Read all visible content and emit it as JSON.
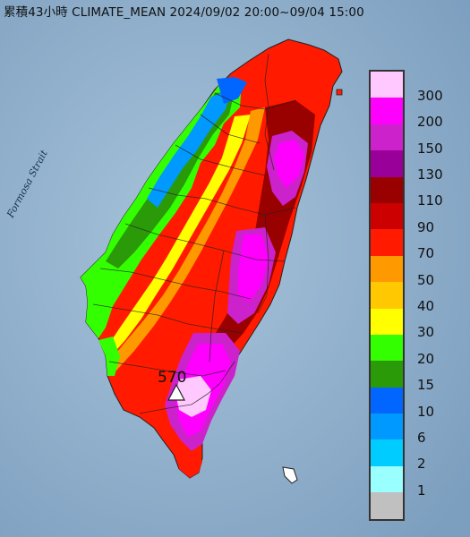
{
  "title": "累積43小時 CLIMATE_MEAN 2024/09/02 20:00~09/04 15:00",
  "strait_label": "Formosa Strait",
  "max_marker": {
    "value": "570",
    "icon": "triangle-station-marker-icon"
  },
  "legend": {
    "unit_note": "",
    "items": [
      {
        "label": "300",
        "color": "#ffc8ff"
      },
      {
        "label": "200",
        "color": "#ff00ff"
      },
      {
        "label": "150",
        "color": "#cc22cc"
      },
      {
        "label": "130",
        "color": "#990099"
      },
      {
        "label": "110",
        "color": "#990000"
      },
      {
        "label": "90",
        "color": "#cc0000"
      },
      {
        "label": "70",
        "color": "#ff1a00"
      },
      {
        "label": "50",
        "color": "#ff9900"
      },
      {
        "label": "40",
        "color": "#ffc800"
      },
      {
        "label": "30",
        "color": "#ffff00"
      },
      {
        "label": "20",
        "color": "#33ff00"
      },
      {
        "label": "15",
        "color": "#2a9a08"
      },
      {
        "label": "10",
        "color": "#0066ff"
      },
      {
        "label": "6",
        "color": "#0099ff"
      },
      {
        "label": "2",
        "color": "#00ccff"
      },
      {
        "label": "1",
        "color": "#99ffff"
      },
      {
        "label": "",
        "color": "#c0c0c0"
      }
    ]
  }
}
